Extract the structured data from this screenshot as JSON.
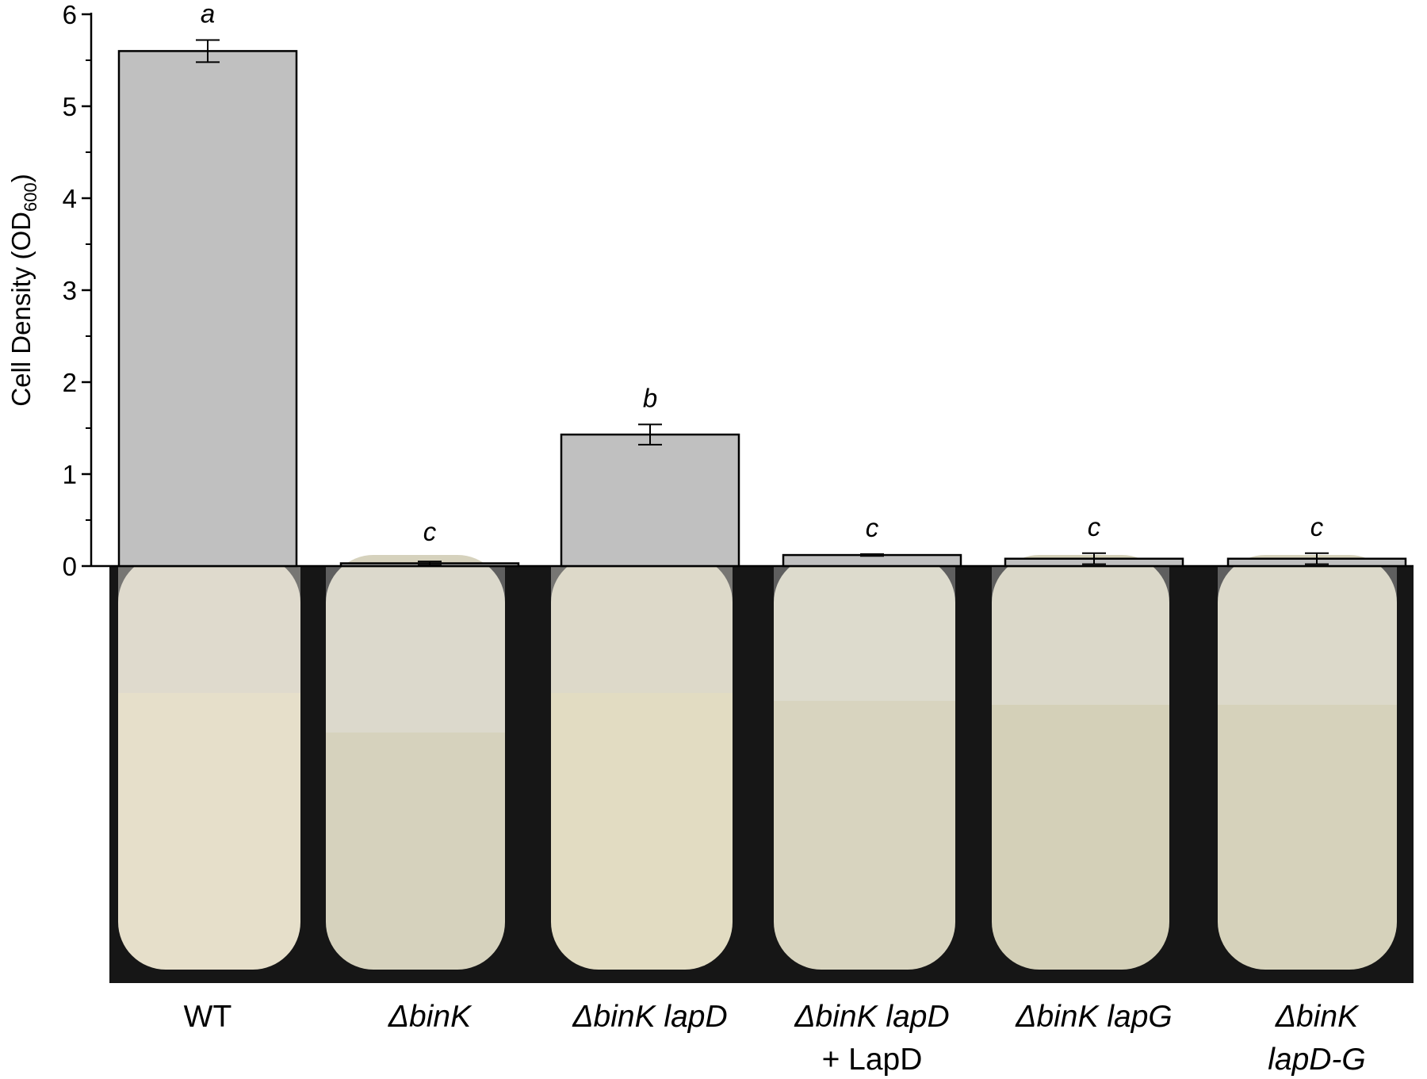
{
  "chart_data": {
    "type": "bar",
    "y_label": [
      "Cell Density (OD",
      "600",
      ")"
    ],
    "categories": [
      [
        "WT"
      ],
      [
        "ΔbinK"
      ],
      [
        "ΔbinK lapD"
      ],
      [
        "ΔbinK lapD",
        "+ LapD"
      ],
      [
        "ΔbinK lapG"
      ],
      [
        "ΔbinK",
        "lapD-G"
      ]
    ],
    "category_italic": [
      [
        false
      ],
      [
        true
      ],
      [
        true
      ],
      [
        true,
        false
      ],
      [
        true
      ],
      [
        true,
        true
      ]
    ],
    "values": [
      5.6,
      0.03,
      1.43,
      0.12,
      0.08,
      0.08
    ],
    "errors": [
      0.12,
      0.02,
      0.11,
      0.01,
      0.06,
      0.06
    ],
    "significance": [
      "a",
      "c",
      "b",
      "c",
      "c",
      "c"
    ],
    "color": "#c0c0c0",
    "ylim": [
      0,
      6
    ],
    "yticks": [
      0,
      1,
      2,
      3,
      4,
      5,
      6
    ],
    "minor_yticks": [
      0.5,
      1.5,
      2.5,
      3.5,
      4.5,
      5.5
    ]
  }
}
